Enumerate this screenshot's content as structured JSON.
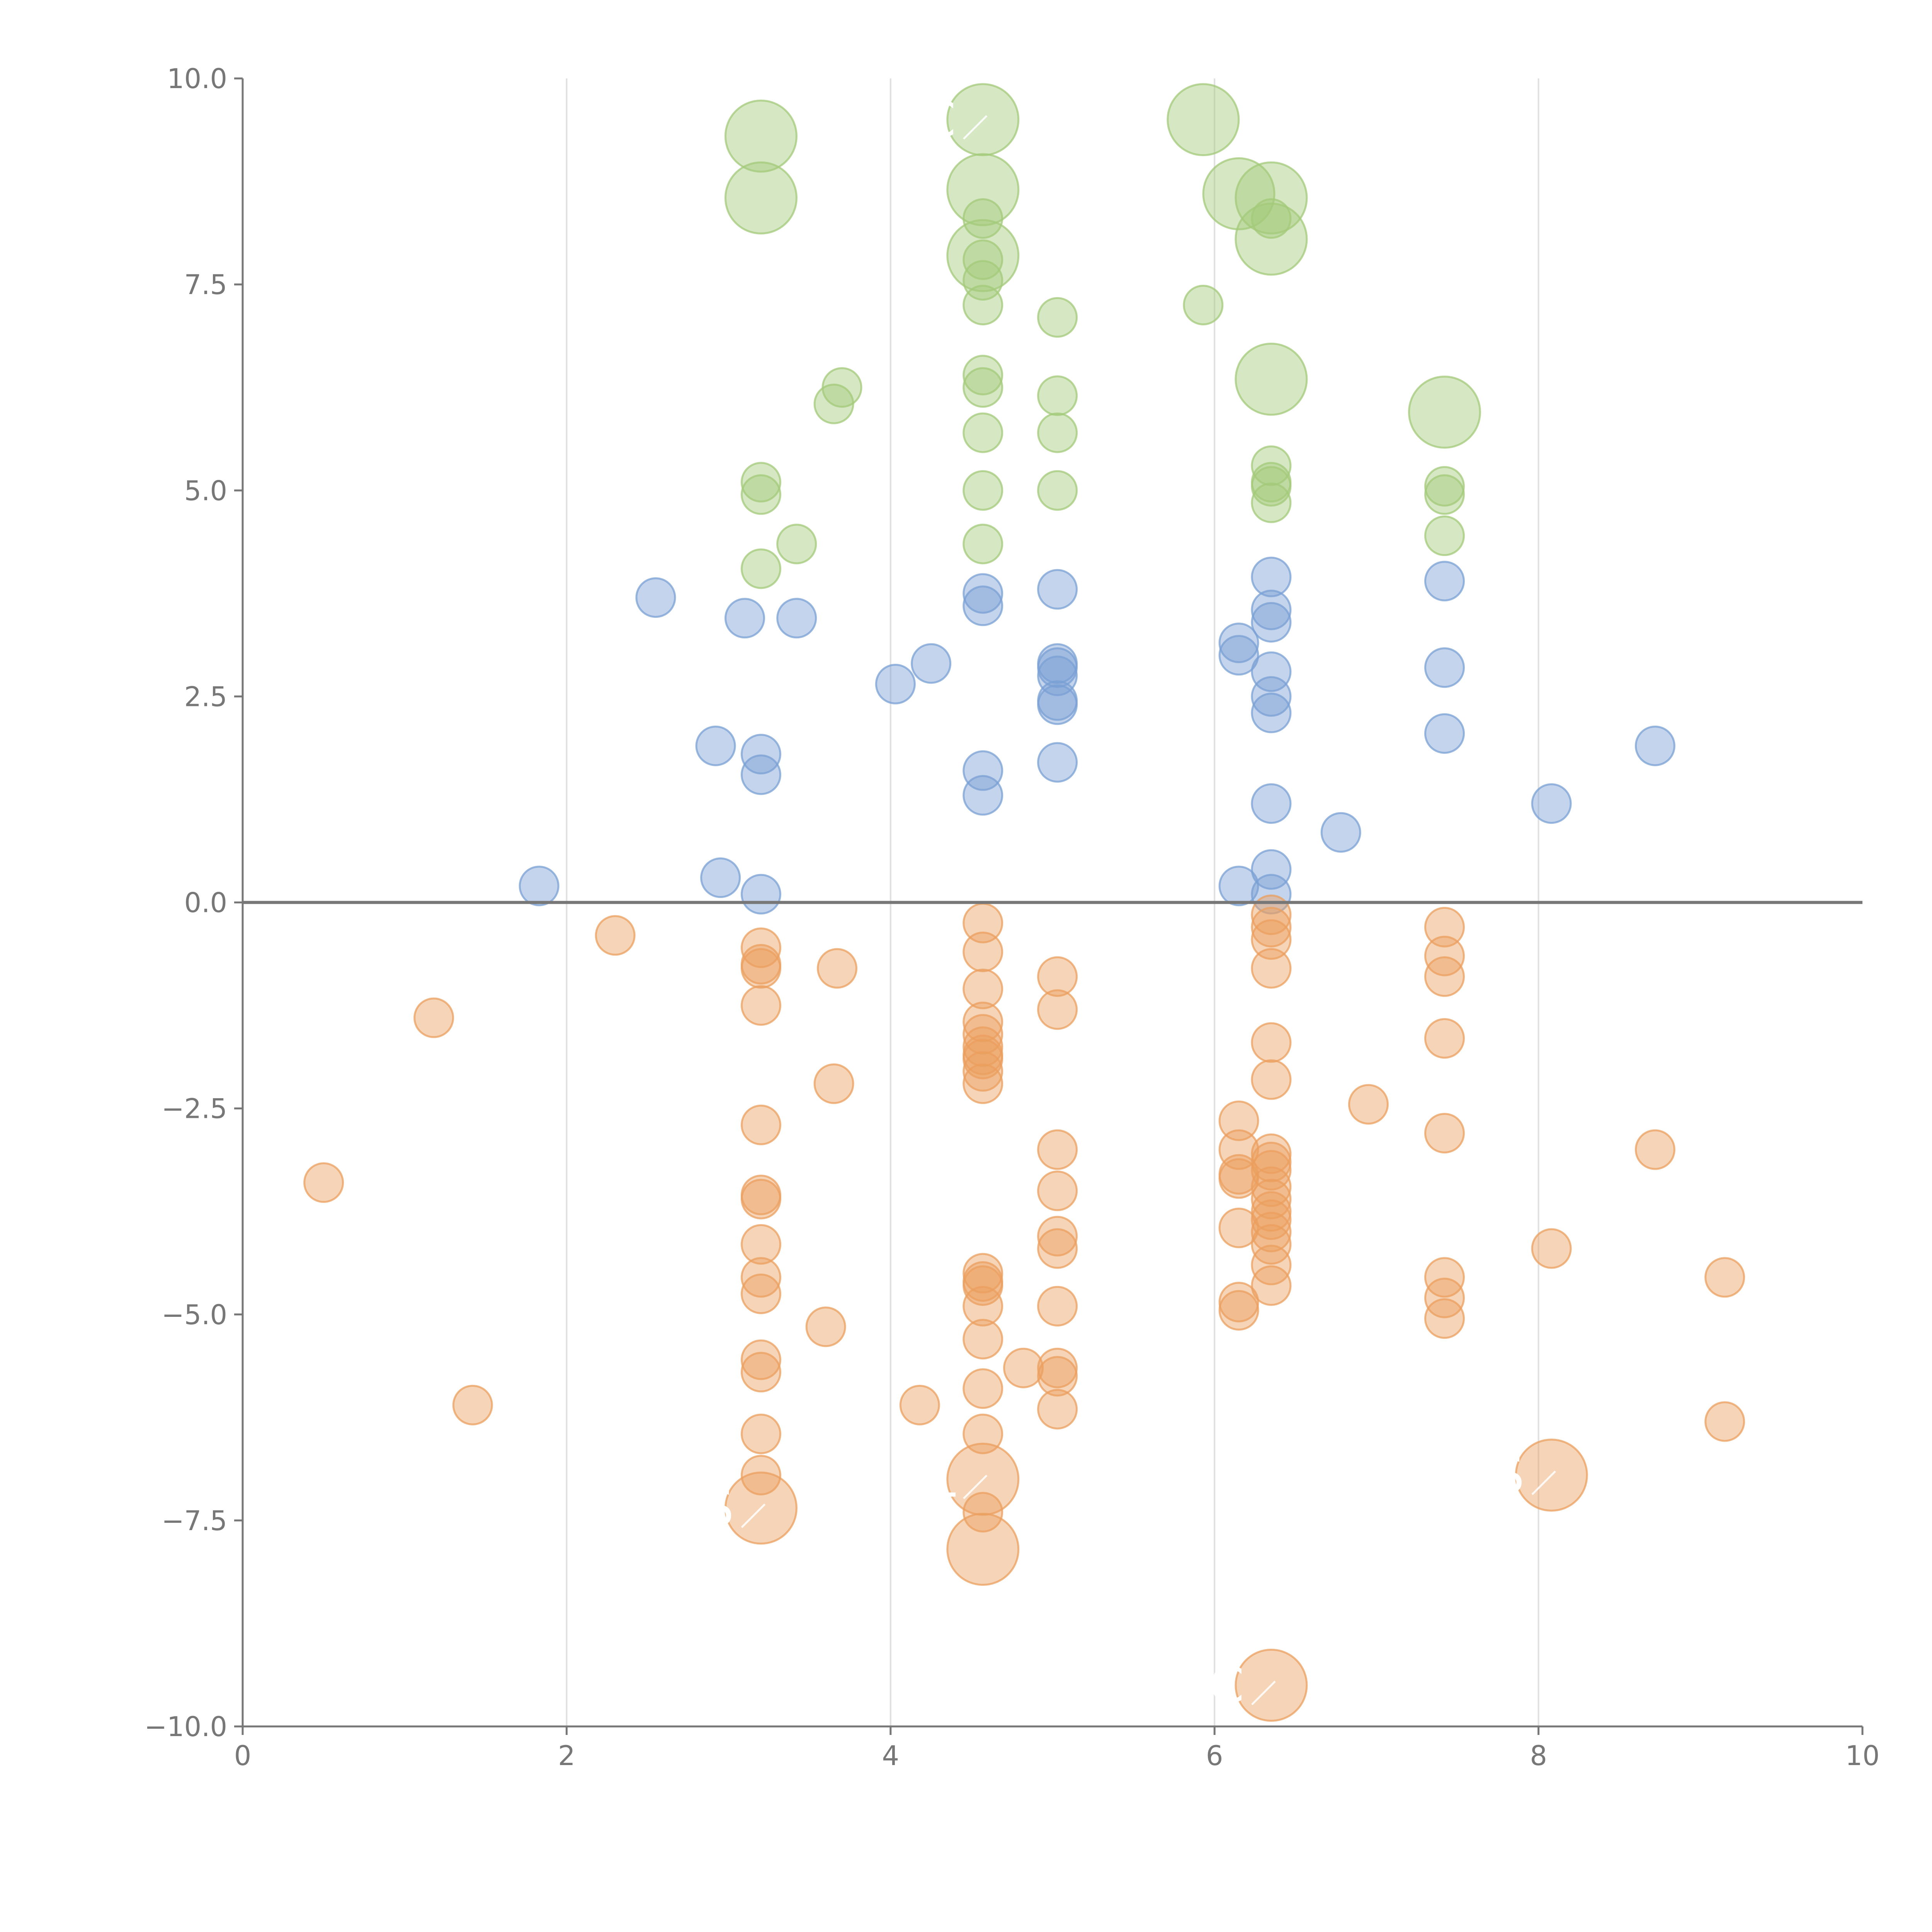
{
  "chart_data": {
    "type": "scatter",
    "title": "",
    "xlabel": "",
    "ylabel": "",
    "xlim": [
      0,
      10
    ],
    "ylim": [
      -10,
      10
    ],
    "x_ticks": [
      "0",
      "2",
      "4",
      "6",
      "8",
      "10"
    ],
    "y_ticks": [
      "10.0",
      "7.5",
      "5.0",
      "2.5",
      "0.0",
      "−2.5",
      "−5.0",
      "−7.5",
      "−10.0"
    ],
    "grid": "vertical",
    "legend": "none",
    "colors": {
      "green": "#a3c97a",
      "blue": "#7aa0d4",
      "orange": "#eb9f5f",
      "zero_line": "#777777",
      "axis": "#777777",
      "grid": "#e0e0e0"
    },
    "series": [
      {
        "color": "#a3c97a",
        "points": [
          {
            "x": 3.2,
            "y": 9.3,
            "size": "large"
          },
          {
            "x": 3.2,
            "y": 8.55,
            "size": "large"
          },
          {
            "x": 4.57,
            "y": 9.5,
            "size": "large",
            "label": "PEC"
          },
          {
            "x": 4.57,
            "y": 8.65,
            "size": "large"
          },
          {
            "x": 4.57,
            "y": 7.85,
            "size": "large"
          },
          {
            "x": 5.93,
            "y": 9.5,
            "size": "large"
          },
          {
            "x": 6.15,
            "y": 8.6,
            "size": "large"
          },
          {
            "x": 6.35,
            "y": 8.55,
            "size": "large"
          },
          {
            "x": 6.35,
            "y": 8.05,
            "size": "large"
          },
          {
            "x": 6.35,
            "y": 6.35,
            "size": "large"
          },
          {
            "x": 7.42,
            "y": 5.95,
            "size": "large"
          },
          {
            "x": 4.57,
            "y": 8.3
          },
          {
            "x": 4.57,
            "y": 7.8
          },
          {
            "x": 4.57,
            "y": 7.55
          },
          {
            "x": 4.57,
            "y": 7.25
          },
          {
            "x": 5.03,
            "y": 7.1
          },
          {
            "x": 5.93,
            "y": 7.25
          },
          {
            "x": 6.35,
            "y": 8.3
          },
          {
            "x": 3.7,
            "y": 6.25
          },
          {
            "x": 3.65,
            "y": 6.05
          },
          {
            "x": 4.57,
            "y": 6.4
          },
          {
            "x": 4.57,
            "y": 6.25
          },
          {
            "x": 4.57,
            "y": 5.7
          },
          {
            "x": 5.03,
            "y": 6.15
          },
          {
            "x": 5.03,
            "y": 5.7
          },
          {
            "x": 3.2,
            "y": 5.1
          },
          {
            "x": 3.2,
            "y": 4.95
          },
          {
            "x": 3.42,
            "y": 4.35
          },
          {
            "x": 3.2,
            "y": 4.05
          },
          {
            "x": 4.57,
            "y": 5.0
          },
          {
            "x": 4.57,
            "y": 4.35
          },
          {
            "x": 5.03,
            "y": 5.0
          },
          {
            "x": 6.35,
            "y": 5.3
          },
          {
            "x": 6.35,
            "y": 5.1
          },
          {
            "x": 6.35,
            "y": 5.05
          },
          {
            "x": 6.35,
            "y": 4.85
          },
          {
            "x": 7.42,
            "y": 5.05
          },
          {
            "x": 7.42,
            "y": 4.95
          },
          {
            "x": 7.42,
            "y": 4.45
          }
        ]
      },
      {
        "color": "#7aa0d4",
        "points": [
          {
            "x": 2.55,
            "y": 3.7
          },
          {
            "x": 3.1,
            "y": 3.45
          },
          {
            "x": 3.42,
            "y": 3.45
          },
          {
            "x": 4.57,
            "y": 3.75
          },
          {
            "x": 4.57,
            "y": 3.6
          },
          {
            "x": 5.03,
            "y": 3.8
          },
          {
            "x": 4.25,
            "y": 2.9
          },
          {
            "x": 4.03,
            "y": 2.65
          },
          {
            "x": 5.03,
            "y": 2.9
          },
          {
            "x": 5.03,
            "y": 2.85
          },
          {
            "x": 5.03,
            "y": 2.75
          },
          {
            "x": 5.03,
            "y": 2.45
          },
          {
            "x": 5.03,
            "y": 2.4
          },
          {
            "x": 6.15,
            "y": 3.15
          },
          {
            "x": 6.15,
            "y": 3.0
          },
          {
            "x": 6.35,
            "y": 3.95
          },
          {
            "x": 6.35,
            "y": 3.55
          },
          {
            "x": 6.35,
            "y": 3.4
          },
          {
            "x": 6.35,
            "y": 2.8
          },
          {
            "x": 6.35,
            "y": 2.5
          },
          {
            "x": 6.35,
            "y": 2.3
          },
          {
            "x": 7.42,
            "y": 3.9
          },
          {
            "x": 7.42,
            "y": 2.85
          },
          {
            "x": 7.42,
            "y": 2.05
          },
          {
            "x": 2.92,
            "y": 1.9
          },
          {
            "x": 3.2,
            "y": 1.8
          },
          {
            "x": 3.2,
            "y": 1.55
          },
          {
            "x": 4.57,
            "y": 1.6
          },
          {
            "x": 4.57,
            "y": 1.3
          },
          {
            "x": 5.03,
            "y": 1.7
          },
          {
            "x": 6.35,
            "y": 1.2
          },
          {
            "x": 6.78,
            "y": 0.85
          },
          {
            "x": 8.08,
            "y": 1.2
          },
          {
            "x": 8.72,
            "y": 1.9
          },
          {
            "x": 1.83,
            "y": 0.2
          },
          {
            "x": 2.95,
            "y": 0.3
          },
          {
            "x": 3.2,
            "y": 0.1
          },
          {
            "x": 6.15,
            "y": 0.2
          },
          {
            "x": 6.35,
            "y": 0.4
          },
          {
            "x": 6.35,
            "y": 0.1
          }
        ]
      },
      {
        "color": "#eb9f5f",
        "points": [
          {
            "x": 2.3,
            "y": -0.4
          },
          {
            "x": 1.18,
            "y": -1.4
          },
          {
            "x": 0.5,
            "y": -3.4
          },
          {
            "x": 1.42,
            "y": -6.1
          },
          {
            "x": 3.2,
            "y": -0.55
          },
          {
            "x": 3.2,
            "y": -0.75
          },
          {
            "x": 3.2,
            "y": -0.8
          },
          {
            "x": 3.2,
            "y": -1.25
          },
          {
            "x": 3.67,
            "y": -0.8
          },
          {
            "x": 3.65,
            "y": -2.2
          },
          {
            "x": 3.2,
            "y": -2.7
          },
          {
            "x": 3.2,
            "y": -3.55
          },
          {
            "x": 3.2,
            "y": -3.6
          },
          {
            "x": 3.2,
            "y": -4.15
          },
          {
            "x": 3.2,
            "y": -4.55
          },
          {
            "x": 3.2,
            "y": -4.75
          },
          {
            "x": 3.6,
            "y": -5.15
          },
          {
            "x": 3.2,
            "y": -5.55
          },
          {
            "x": 3.2,
            "y": -5.7
          },
          {
            "x": 3.2,
            "y": -6.45
          },
          {
            "x": 3.2,
            "y": -6.95
          },
          {
            "x": 3.2,
            "y": -7.35,
            "size": "large",
            "label": "S"
          },
          {
            "x": 4.18,
            "y": -6.1
          },
          {
            "x": 4.57,
            "y": -0.25
          },
          {
            "x": 4.57,
            "y": -0.6
          },
          {
            "x": 4.57,
            "y": -1.05
          },
          {
            "x": 4.57,
            "y": -1.45
          },
          {
            "x": 4.57,
            "y": -1.6
          },
          {
            "x": 4.57,
            "y": -1.75
          },
          {
            "x": 4.57,
            "y": -1.85
          },
          {
            "x": 4.57,
            "y": -1.9
          },
          {
            "x": 4.57,
            "y": -2.05
          },
          {
            "x": 4.57,
            "y": -2.2
          },
          {
            "x": 4.57,
            "y": -4.5
          },
          {
            "x": 4.57,
            "y": -4.6
          },
          {
            "x": 4.57,
            "y": -4.65
          },
          {
            "x": 4.57,
            "y": -4.9
          },
          {
            "x": 4.57,
            "y": -5.3
          },
          {
            "x": 4.57,
            "y": -5.9
          },
          {
            "x": 4.57,
            "y": -6.45
          },
          {
            "x": 4.57,
            "y": -7.4
          },
          {
            "x": 4.57,
            "y": -7.0,
            "size": "large",
            "label": "L"
          },
          {
            "x": 4.57,
            "y": -7.85,
            "size": "large"
          },
          {
            "x": 4.82,
            "y": -5.65
          },
          {
            "x": 5.03,
            "y": -0.9
          },
          {
            "x": 5.03,
            "y": -1.3
          },
          {
            "x": 5.03,
            "y": -3.0
          },
          {
            "x": 5.03,
            "y": -3.5
          },
          {
            "x": 5.03,
            "y": -4.05
          },
          {
            "x": 5.03,
            "y": -4.2
          },
          {
            "x": 5.03,
            "y": -4.9
          },
          {
            "x": 5.03,
            "y": -5.65
          },
          {
            "x": 5.03,
            "y": -5.75
          },
          {
            "x": 5.03,
            "y": -6.15
          },
          {
            "x": 6.15,
            "y": -2.65
          },
          {
            "x": 6.15,
            "y": -3.0
          },
          {
            "x": 6.15,
            "y": -3.3
          },
          {
            "x": 6.15,
            "y": -3.35
          },
          {
            "x": 6.15,
            "y": -3.95
          },
          {
            "x": 6.15,
            "y": -4.85
          },
          {
            "x": 6.15,
            "y": -4.95
          },
          {
            "x": 6.35,
            "y": -0.15
          },
          {
            "x": 6.35,
            "y": -0.3
          },
          {
            "x": 6.35,
            "y": -0.45
          },
          {
            "x": 6.35,
            "y": -0.8
          },
          {
            "x": 6.35,
            "y": -1.7
          },
          {
            "x": 6.35,
            "y": -2.15
          },
          {
            "x": 6.35,
            "y": -3.05
          },
          {
            "x": 6.35,
            "y": -3.15
          },
          {
            "x": 6.35,
            "y": -3.25
          },
          {
            "x": 6.35,
            "y": -3.45
          },
          {
            "x": 6.35,
            "y": -3.6
          },
          {
            "x": 6.35,
            "y": -3.75
          },
          {
            "x": 6.35,
            "y": -3.85
          },
          {
            "x": 6.35,
            "y": -4.0
          },
          {
            "x": 6.35,
            "y": -4.15
          },
          {
            "x": 6.35,
            "y": -4.4
          },
          {
            "x": 6.35,
            "y": -4.65
          },
          {
            "x": 6.35,
            "y": -9.5,
            "size": "large",
            "label": "C"
          },
          {
            "x": 6.95,
            "y": -2.45
          },
          {
            "x": 7.42,
            "y": -0.3
          },
          {
            "x": 7.42,
            "y": -0.65
          },
          {
            "x": 7.42,
            "y": -0.9
          },
          {
            "x": 7.42,
            "y": -1.65
          },
          {
            "x": 7.42,
            "y": -2.8
          },
          {
            "x": 7.42,
            "y": -4.55
          },
          {
            "x": 7.42,
            "y": -4.8
          },
          {
            "x": 7.42,
            "y": -5.05
          },
          {
            "x": 8.08,
            "y": -4.2
          },
          {
            "x": 8.08,
            "y": -6.95,
            "size": "large",
            "label": "S"
          },
          {
            "x": 8.72,
            "y": -3.0
          },
          {
            "x": 9.15,
            "y": -4.55
          },
          {
            "x": 9.15,
            "y": -6.3
          }
        ]
      }
    ]
  }
}
